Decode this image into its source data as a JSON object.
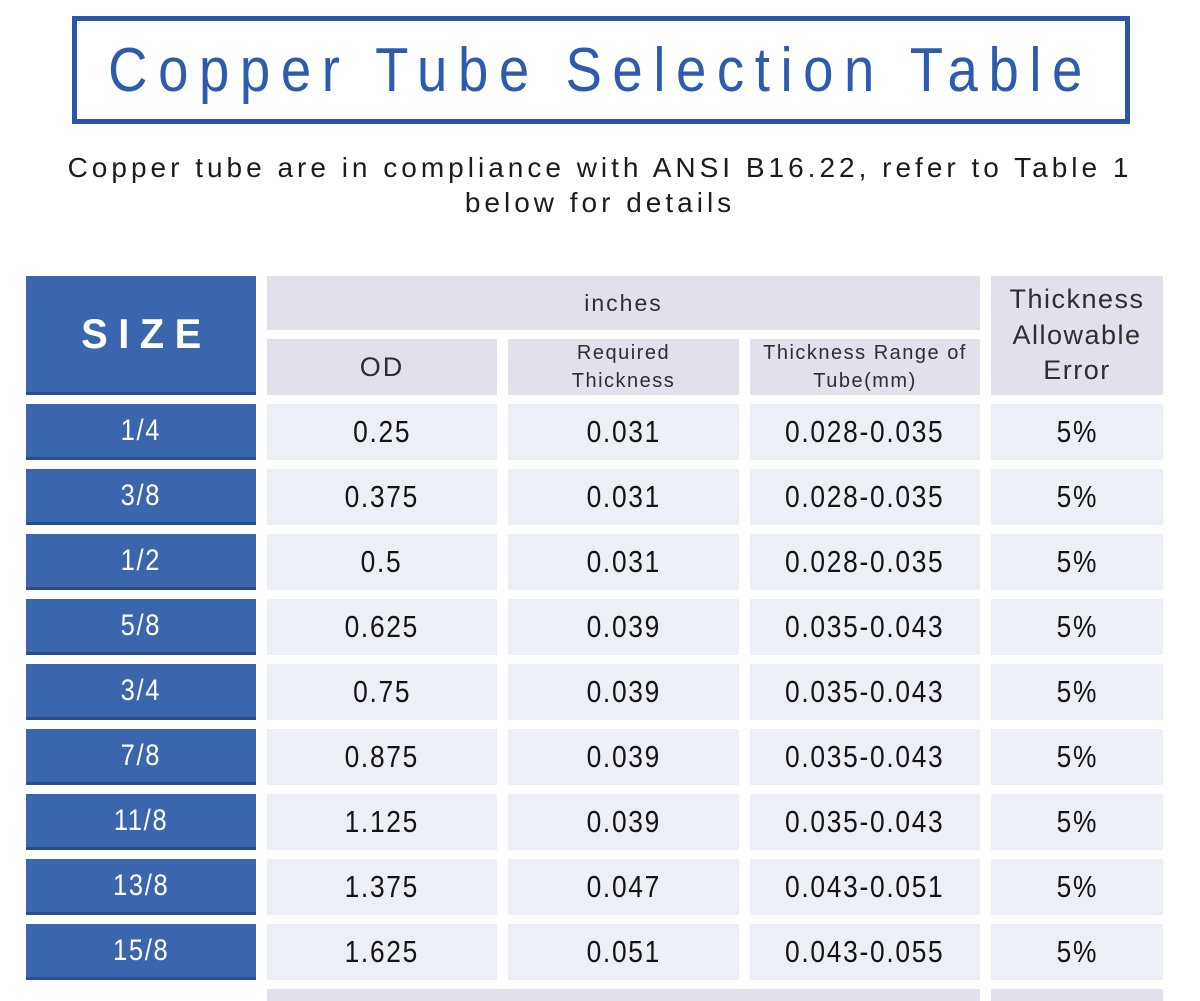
{
  "title": "Copper Tube Selection Table",
  "subtitle": "Copper tube are in compliance with ANSI B16.22, refer to Table 1 below for details",
  "table": {
    "size_header": "SIZE",
    "unit_group_header": "inches",
    "column_headers": {
      "od": "OD",
      "required_thickness": "Required Thickness",
      "thickness_range": "Thickness Range of Tube(mm)",
      "allowable_error": "Thickness Allowable Error"
    },
    "rows": [
      {
        "size": "1/4",
        "od": "0.25",
        "required_thickness": "0.031",
        "thickness_range": "0.028-0.035",
        "allowable_error": "5%"
      },
      {
        "size": "3/8",
        "od": "0.375",
        "required_thickness": "0.031",
        "thickness_range": "0.028-0.035",
        "allowable_error": "5%"
      },
      {
        "size": "1/2",
        "od": "0.5",
        "required_thickness": "0.031",
        "thickness_range": "0.028-0.035",
        "allowable_error": "5%"
      },
      {
        "size": "5/8",
        "od": "0.625",
        "required_thickness": "0.039",
        "thickness_range": "0.035-0.043",
        "allowable_error": "5%"
      },
      {
        "size": "3/4",
        "od": "0.75",
        "required_thickness": "0.039",
        "thickness_range": "0.035-0.043",
        "allowable_error": "5%"
      },
      {
        "size": "7/8",
        "od": "0.875",
        "required_thickness": "0.039",
        "thickness_range": "0.035-0.043",
        "allowable_error": "5%"
      },
      {
        "size": "11/8",
        "od": "1.125",
        "required_thickness": "0.039",
        "thickness_range": "0.035-0.043",
        "allowable_error": "5%"
      },
      {
        "size": "13/8",
        "od": "1.375",
        "required_thickness": "0.047",
        "thickness_range": "0.043-0.051",
        "allowable_error": "5%"
      },
      {
        "size": "15/8",
        "od": "1.625",
        "required_thickness": "0.051",
        "thickness_range": "0.043-0.055",
        "allowable_error": "5%"
      }
    ]
  },
  "colors": {
    "title_blue": "#2d5cae",
    "title_border_blue": "#2b56a8",
    "size_cell_blue": "#3a66ae",
    "size_cell_bottom_border": "#2a4d8f",
    "header_cell_lavender": "#e2e0ea",
    "data_cell_light": "#ecf0f6",
    "text_dark": "#141414",
    "background": "#ffffff"
  }
}
